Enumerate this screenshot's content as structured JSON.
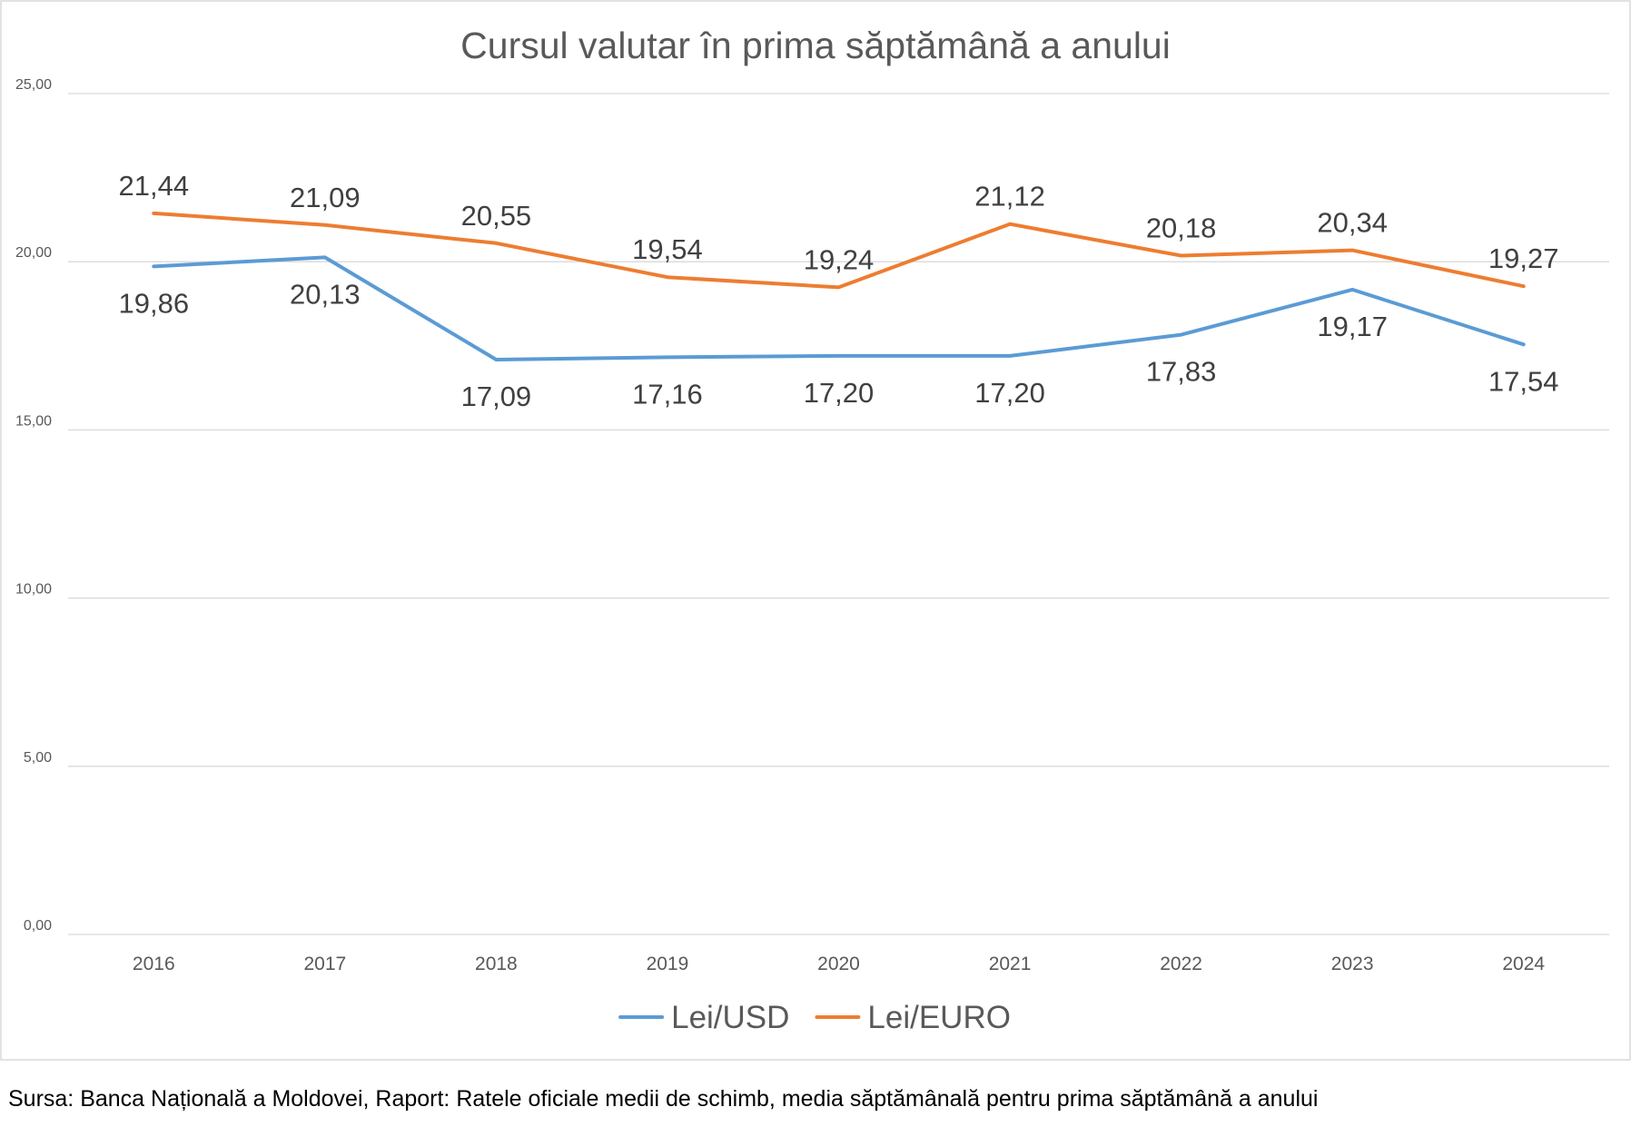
{
  "chart_data": {
    "type": "line",
    "title": "Cursul valutar în prima săptămână a anului",
    "xlabel": "",
    "ylabel": "",
    "categories": [
      "2016",
      "2017",
      "2018",
      "2019",
      "2020",
      "2021",
      "2022",
      "2023",
      "2024"
    ],
    "ylim": [
      0,
      25
    ],
    "yticks": [
      0,
      5,
      10,
      15,
      20,
      25
    ],
    "ytick_labels": [
      "0,00",
      "5,00",
      "10,00",
      "15,00",
      "20,00",
      "25,00"
    ],
    "grid": true,
    "legend_position": "bottom",
    "series": [
      {
        "name": "Lei/USD",
        "color": "#5b9bd5",
        "values": [
          19.86,
          20.13,
          17.09,
          17.16,
          17.2,
          17.2,
          17.83,
          19.17,
          17.54
        ],
        "data_labels": [
          "19,86",
          "20,13",
          "17,09",
          "17,16",
          "17,20",
          "17,20",
          "17,83",
          "19,17",
          "17,54"
        ],
        "label_position": "below"
      },
      {
        "name": "Lei/EURO",
        "color": "#ed7d31",
        "values": [
          21.44,
          21.09,
          20.55,
          19.54,
          19.24,
          21.12,
          20.18,
          20.34,
          19.27
        ],
        "data_labels": [
          "21,44",
          "21,09",
          "20,55",
          "19,54",
          "19,24",
          "21,12",
          "20,18",
          "20,34",
          "19,27"
        ],
        "label_position": "above"
      }
    ]
  },
  "source_note": "Sursa: Banca Națională a Moldovei, Raport: Ratele oficiale medii de schimb, media săptămânală pentru prima săptămână a anului"
}
